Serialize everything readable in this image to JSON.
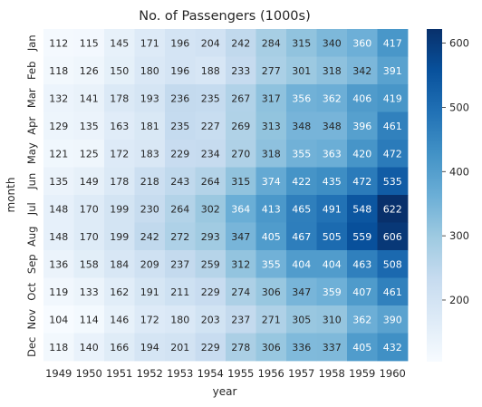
{
  "chart_data": {
    "type": "heatmap",
    "title": "No. of Passengers (1000s)",
    "xlabel": "year",
    "ylabel": "month",
    "x": [
      "1949",
      "1950",
      "1951",
      "1952",
      "1953",
      "1954",
      "1955",
      "1956",
      "1957",
      "1958",
      "1959",
      "1960"
    ],
    "y": [
      "Jan",
      "Feb",
      "Mar",
      "Apr",
      "May",
      "Jun",
      "Jul",
      "Aug",
      "Sep",
      "Oct",
      "Nov",
      "Dec"
    ],
    "values": [
      [
        112,
        115,
        145,
        171,
        196,
        204,
        242,
        284,
        315,
        340,
        360,
        417
      ],
      [
        118,
        126,
        150,
        180,
        196,
        188,
        233,
        277,
        301,
        318,
        342,
        391
      ],
      [
        132,
        141,
        178,
        193,
        236,
        235,
        267,
        317,
        356,
        362,
        406,
        419
      ],
      [
        129,
        135,
        163,
        181,
        235,
        227,
        269,
        313,
        348,
        348,
        396,
        461
      ],
      [
        121,
        125,
        172,
        183,
        229,
        234,
        270,
        318,
        355,
        363,
        420,
        472
      ],
      [
        135,
        149,
        178,
        218,
        243,
        264,
        315,
        374,
        422,
        435,
        472,
        535
      ],
      [
        148,
        170,
        199,
        230,
        264,
        302,
        364,
        413,
        465,
        491,
        548,
        622
      ],
      [
        148,
        170,
        199,
        242,
        272,
        293,
        347,
        405,
        467,
        505,
        559,
        606
      ],
      [
        136,
        158,
        184,
        209,
        237,
        259,
        312,
        355,
        404,
        404,
        463,
        508
      ],
      [
        119,
        133,
        162,
        191,
        211,
        229,
        274,
        306,
        347,
        359,
        407,
        461
      ],
      [
        104,
        114,
        146,
        172,
        180,
        203,
        237,
        271,
        305,
        310,
        362,
        390
      ],
      [
        118,
        140,
        166,
        194,
        201,
        229,
        278,
        306,
        336,
        337,
        405,
        432
      ]
    ],
    "colorbar": {
      "range": [
        104,
        622
      ],
      "ticks": [
        "200",
        "300",
        "400",
        "500",
        "600"
      ],
      "colormap": "Blues"
    }
  }
}
